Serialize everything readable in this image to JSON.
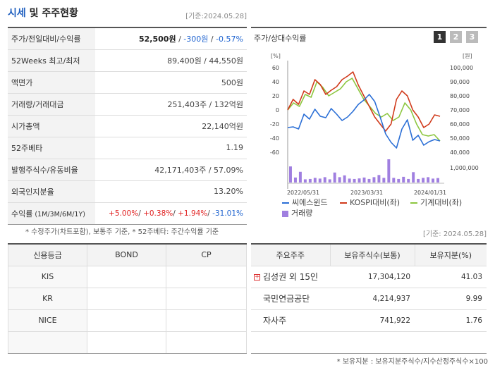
{
  "header": {
    "title_main": "시세",
    "title_rest": " 및 주주현황",
    "date": "[기준:2024.05.28]"
  },
  "quote": {
    "rows": [
      {
        "key": "주가/전일대비/수익률"
      },
      {
        "key": "52Weeks 최고/최저",
        "value": "89,400원 / 44,550원"
      },
      {
        "key": "액면가",
        "value": "500원"
      },
      {
        "key": "거래량/거래대금",
        "value": "251,403주 / 132억원"
      },
      {
        "key": "시가총액",
        "value": "22,140억원"
      },
      {
        "key": "52주베타",
        "value": "1.19"
      },
      {
        "key": "발행주식수/유동비율",
        "value": "42,171,403주 / 57.09%"
      },
      {
        "key": "외국인지분율",
        "value": "13.20%"
      },
      {
        "key": "수익률",
        "key_sub": " (1M/3M/6M/1Y)"
      }
    ],
    "price": "52,500원",
    "sep1": " / ",
    "change": "-300원",
    "sep2": " / ",
    "rate": "-0.57%",
    "ret_1m": "+5.00%",
    "ret_3m": "+0.38%",
    "ret_6m": "+1.94%",
    "ret_1y": "-31.01%",
    "ret_sep": "/ "
  },
  "note1": "* 수정주가(차트포함), 보통주 기준, * 52주베타: 주간수익률 기준",
  "chart": {
    "title": "주가/상대수익률",
    "pages": [
      "1",
      "2",
      "3"
    ],
    "left_unit": "[%]",
    "right_unit": "[원]",
    "left_ticks": [
      "60",
      "40",
      "20",
      "0",
      "-20",
      "-40",
      "-60"
    ],
    "right_ticks": [
      "100,000",
      "90,000",
      "80,000",
      "70,000",
      "60,000",
      "50,000",
      "40,000"
    ],
    "vol_tick": "1,000,000",
    "x_ticks": [
      "2022/05/31",
      "2023/03/31",
      "2024/01/31"
    ],
    "legend": {
      "s1": "씨에스윈드",
      "s2": "KOSPI대비(좌)",
      "s3": "기계대비(좌)",
      "vol": "거래량"
    },
    "colors": {
      "s1": "#2b6fd6",
      "s2": "#d03a1b",
      "s3": "#8cc63f",
      "vol": "#a07fe0"
    }
  },
  "chart_data": {
    "type": "line",
    "x_ticks": [
      "2022/05/31",
      "2023/03/31",
      "2024/01/31"
    ],
    "left_axis": {
      "unit": "%",
      "ylim": [
        -60,
        60
      ]
    },
    "right_axis": {
      "unit": "원",
      "ylim": [
        40000,
        100000
      ]
    },
    "series": [
      {
        "name": "씨에스윈드",
        "axis": "right",
        "values": [
          57500,
          58000,
          56500,
          67000,
          63500,
          70500,
          65500,
          64500,
          71000,
          67000,
          62500,
          65000,
          69000,
          74000,
          77000,
          81000,
          76000,
          65000,
          53000,
          47000,
          43000,
          56500,
          63000,
          48500,
          52000,
          45000,
          47500,
          49000,
          48000
        ]
      },
      {
        "name": "KOSPI대비(좌)",
        "axis": "left",
        "values": [
          0,
          15,
          8,
          27,
          22,
          43,
          36,
          22,
          28,
          33,
          43,
          48,
          54,
          35,
          20,
          5,
          -10,
          -20,
          -30,
          -20,
          15,
          27,
          20,
          0,
          -10,
          -25,
          -20,
          -7,
          -9
        ]
      },
      {
        "name": "기계대비(좌)",
        "axis": "left",
        "values": [
          0,
          10,
          5,
          22,
          18,
          40,
          32,
          20,
          25,
          30,
          40,
          45,
          30,
          15,
          5,
          -5,
          -10,
          -5,
          -15,
          -10,
          10,
          0,
          -20,
          -35,
          -37,
          -35,
          -44
        ]
      },
      {
        "name": "거래량",
        "axis": "volume",
        "values": [
          900000,
          280000,
          600000,
          180000,
          200000,
          260000,
          220000,
          300000,
          180000,
          560000,
          300000,
          400000,
          220000,
          200000,
          230000,
          280000,
          200000,
          300000,
          420000,
          260000,
          1300000,
          260000,
          200000,
          320000,
          200000,
          580000,
          200000,
          260000,
          300000,
          220000,
          250000
        ]
      }
    ]
  },
  "date2": "[기준: 2024.05.28]",
  "credit": {
    "headers": [
      "신용등급",
      "BOND",
      "CP"
    ],
    "rows": [
      {
        "name": "KIS"
      },
      {
        "name": "KR"
      },
      {
        "name": "NICE"
      },
      {
        "name": ""
      }
    ]
  },
  "holders": {
    "headers": [
      "주요주주",
      "보유주식수(보통)",
      "보유지분(%)"
    ],
    "rows": [
      {
        "name": "김성권 외 15인",
        "shares": "17,304,120",
        "pct": "41.03"
      },
      {
        "name": "국민연금공단",
        "shares": "4,214,937",
        "pct": "9.99"
      },
      {
        "name": "자사주",
        "shares": "741,922",
        "pct": "1.76"
      },
      {
        "name": "",
        "shares": "",
        "pct": ""
      }
    ]
  },
  "note2": "* 보유지분 : 보유지분주식수/지수산정주식수×100"
}
